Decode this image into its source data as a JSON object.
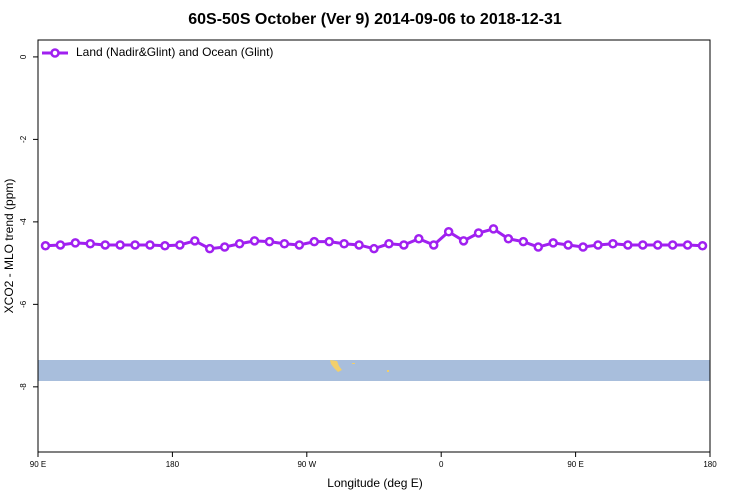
{
  "chart_data": {
    "type": "line",
    "title": "60S-50S October (Ver 9)   2014-09-06 to 2018-12-31",
    "x_label": "Longitude (deg E)",
    "y_label": "XCO2 - MLO trend (ppm)",
    "x": [
      95,
      105,
      115,
      125,
      135,
      145,
      155,
      165,
      175,
      185,
      195,
      205,
      215,
      225,
      235,
      245,
      255,
      265,
      275,
      285,
      295,
      305,
      315,
      325,
      335,
      345,
      355,
      365,
      375,
      385,
      395,
      405,
      415,
      425,
      435,
      445,
      455,
      465,
      475,
      485,
      495,
      505,
      515,
      525,
      535
    ],
    "series": [
      {
        "name": "Land (Nadir&Glint) and Ocean (Glint)",
        "color": "#a020f0",
        "values": [
          -4.58,
          -4.56,
          -4.51,
          -4.53,
          -4.56,
          -4.56,
          -4.56,
          -4.56,
          -4.58,
          -4.56,
          -4.46,
          -4.65,
          -4.61,
          -4.53,
          -4.46,
          -4.48,
          -4.53,
          -4.56,
          -4.48,
          -4.48,
          -4.53,
          -4.56,
          -4.65,
          -4.53,
          -4.56,
          -4.41,
          -4.56,
          -4.24,
          -4.46,
          -4.27,
          -4.17,
          -4.41,
          -4.48,
          -4.61,
          -4.51,
          -4.56,
          -4.61,
          -4.56,
          -4.53,
          -4.56,
          -4.56,
          -4.56,
          -4.56,
          -4.56,
          -4.58
        ]
      }
    ],
    "xlim": [
      90,
      540
    ],
    "ylim": [
      -9.58,
      0.41
    ],
    "xticks": [
      {
        "value": 90,
        "label": "90 E"
      },
      {
        "value": 180,
        "label": "180"
      },
      {
        "value": 270,
        "label": "90 W"
      },
      {
        "value": 360,
        "label": "0"
      },
      {
        "value": 450,
        "label": "90 E"
      },
      {
        "value": 540,
        "label": "180"
      }
    ],
    "yticks": [
      0,
      -2,
      -4,
      -6,
      -8
    ],
    "legend": "top-left"
  }
}
